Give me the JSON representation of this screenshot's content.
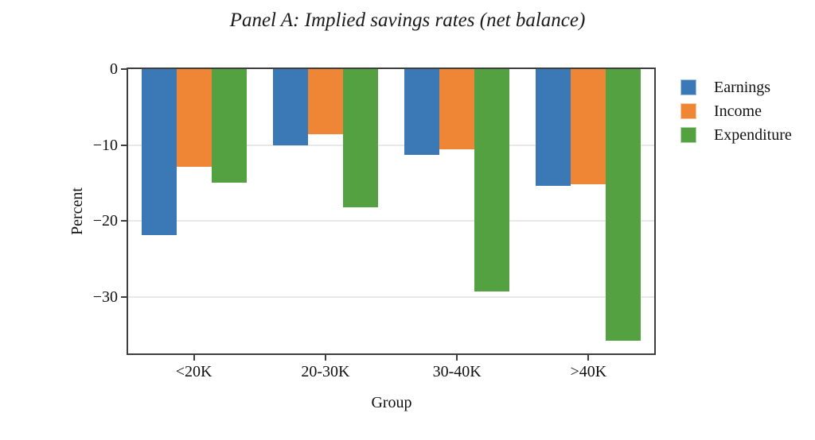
{
  "title": "Panel A: Implied savings rates (net balance)",
  "chart_data": {
    "type": "bar",
    "orientation": "vertical-negative",
    "title": "Panel A: Implied savings rates (net balance)",
    "categories": [
      "<20K",
      "20-30K",
      "30-40K",
      ">40K"
    ],
    "series": [
      {
        "name": "Earnings",
        "color": "#3a79b5",
        "values": [
          -21.8,
          -10.0,
          -11.3,
          -15.4
        ]
      },
      {
        "name": "Income",
        "color": "#ef8636",
        "values": [
          -12.8,
          -8.6,
          -10.5,
          -15.1
        ]
      },
      {
        "name": "Expenditure",
        "color": "#53a140",
        "values": [
          -14.9,
          -18.2,
          -29.2,
          -35.7
        ]
      }
    ],
    "xlabel": "Group",
    "ylabel": "Percent",
    "ylim": [
      -37.4,
      0
    ],
    "yticks": [
      0,
      -10,
      -20,
      -30
    ],
    "ytick_labels": [
      "0",
      "−10",
      "−20",
      "−30"
    ],
    "grid": "horizontal",
    "legend_position": "right-outside"
  },
  "colors": {
    "frame": "#3e3e3e",
    "gridline": "#e8e8e8",
    "text": "#111111",
    "background": "#ffffff"
  }
}
